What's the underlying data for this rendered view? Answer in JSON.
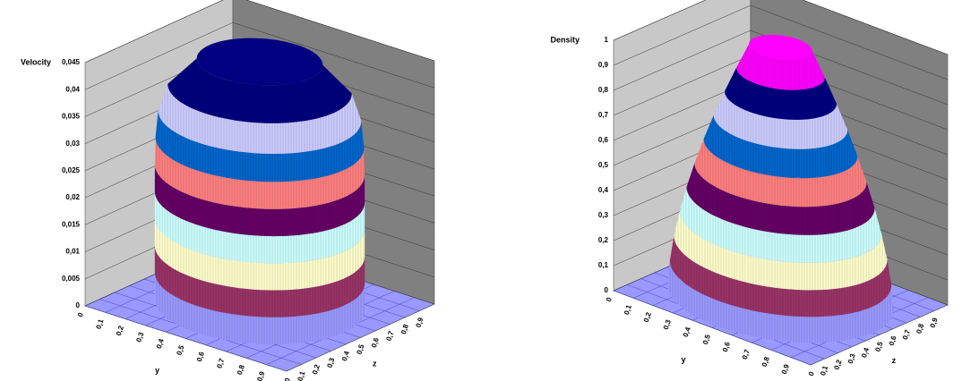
{
  "chart_data": [
    {
      "type": "surface",
      "ylabel": "Velocity",
      "xlabel": "y",
      "zlabel": "z",
      "ylim": [
        0,
        0.045
      ],
      "yticks": [
        0,
        {
          "value": 0.005,
          "label": "0,005"
        },
        {
          "value": 0.01,
          "label": "0,01"
        },
        {
          "value": 0.015,
          "label": "0,015"
        },
        {
          "value": 0.02,
          "label": "0,02"
        },
        {
          "value": 0.025,
          "label": "0,025"
        },
        {
          "value": 0.03,
          "label": "0,03"
        },
        {
          "value": 0.035,
          "label": "0,035"
        },
        {
          "value": 0.04,
          "label": "0,04"
        },
        {
          "value": 0.045,
          "label": "0,045"
        }
      ],
      "xlim": [
        0,
        1
      ],
      "xticks": [
        0,
        {
          "value": 0.1,
          "label": "0,1"
        },
        {
          "value": 0.2,
          "label": "0,2"
        },
        {
          "value": 0.3,
          "label": "0,3"
        },
        {
          "value": 0.4,
          "label": "0,4"
        },
        {
          "value": 0.5,
          "label": "0,5"
        },
        {
          "value": 0.6,
          "label": "0,6"
        },
        {
          "value": 0.7,
          "label": "0,7"
        },
        {
          "value": 0.8,
          "label": "0,8"
        },
        {
          "value": 0.9,
          "label": "0,9"
        }
      ],
      "zlim": [
        0,
        1
      ],
      "zticks": [
        0,
        {
          "value": 0.1,
          "label": "0,1"
        },
        {
          "value": 0.2,
          "label": "0,2"
        },
        {
          "value": 0.3,
          "label": "0,3"
        },
        {
          "value": 0.4,
          "label": "0,4"
        },
        {
          "value": 0.5,
          "label": "0,5"
        },
        {
          "value": 0.6,
          "label": "0,6"
        },
        {
          "value": 0.7,
          "label": "0,7"
        },
        {
          "value": 0.8,
          "label": "0,8"
        },
        {
          "value": 0.9,
          "label": "0,9"
        }
      ],
      "band_colors": [
        "#9999ff",
        "#993366",
        "#ffffcc",
        "#ccffff",
        "#660066",
        "#ff8080",
        "#0066cc",
        "#ccccff",
        "#000080"
      ],
      "wall_colors": [
        "#c8c8c8",
        "#808080"
      ]
    },
    {
      "type": "surface",
      "ylabel": "Density",
      "xlabel": "y",
      "zlabel": "z",
      "ylim": [
        0,
        1
      ],
      "yticks": [
        0,
        {
          "value": 0.1,
          "label": "0,1"
        },
        {
          "value": 0.2,
          "label": "0,2"
        },
        {
          "value": 0.3,
          "label": "0,3"
        },
        {
          "value": 0.4,
          "label": "0,4"
        },
        {
          "value": 0.5,
          "label": "0,5"
        },
        {
          "value": 0.6,
          "label": "0,6"
        },
        {
          "value": 0.7,
          "label": "0,7"
        },
        {
          "value": 0.8,
          "label": "0,8"
        },
        {
          "value": 0.9,
          "label": "0,9"
        },
        1
      ],
      "xlim": [
        0,
        1
      ],
      "xticks": [
        0,
        {
          "value": 0.1,
          "label": "0,1"
        },
        {
          "value": 0.2,
          "label": "0,2"
        },
        {
          "value": 0.3,
          "label": "0,3"
        },
        {
          "value": 0.4,
          "label": "0,4"
        },
        {
          "value": 0.5,
          "label": "0,5"
        },
        {
          "value": 0.6,
          "label": "0,6"
        },
        {
          "value": 0.7,
          "label": "0,7"
        },
        {
          "value": 0.8,
          "label": "0,8"
        },
        {
          "value": 0.9,
          "label": "0,9"
        }
      ],
      "zlim": [
        0,
        1
      ],
      "zticks": [
        0,
        {
          "value": 0.1,
          "label": "0,1"
        },
        {
          "value": 0.2,
          "label": "0,2"
        },
        {
          "value": 0.3,
          "label": "0,3"
        },
        {
          "value": 0.4,
          "label": "0,4"
        },
        {
          "value": 0.5,
          "label": "0,5"
        },
        {
          "value": 0.6,
          "label": "0,6"
        },
        {
          "value": 0.7,
          "label": "0,7"
        },
        {
          "value": 0.8,
          "label": "0,8"
        },
        {
          "value": 0.9,
          "label": "0,9"
        }
      ],
      "band_colors": [
        "#9999ff",
        "#993366",
        "#ffffcc",
        "#ccffff",
        "#660066",
        "#ff8080",
        "#0066cc",
        "#ccccff",
        "#000080",
        "#ff00ff"
      ],
      "wall_colors": [
        "#c8c8c8",
        "#808080"
      ]
    }
  ]
}
